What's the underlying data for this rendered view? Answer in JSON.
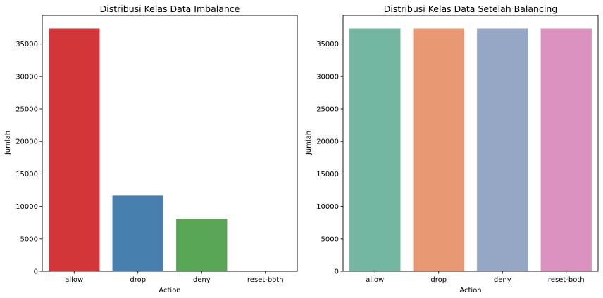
{
  "chart_data": [
    {
      "type": "bar",
      "title": "Distribusi Kelas Data Imbalance",
      "xlabel": "Action",
      "ylabel": "Jumlah",
      "categories": [
        "allow",
        "drop",
        "deny",
        "reset-both"
      ],
      "values": [
        37400,
        11650,
        8100,
        50
      ],
      "colors": [
        "#d13537",
        "#487eae",
        "#5ba556",
        "#8f5fa6"
      ],
      "ylim": [
        0,
        39400
      ],
      "yticks": [
        0,
        5000,
        10000,
        15000,
        20000,
        25000,
        30000,
        35000
      ],
      "grid": false
    },
    {
      "type": "bar",
      "title": "Distribusi Kelas Data Setelah Balancing",
      "xlabel": "Action",
      "ylabel": "Jumlah",
      "categories": [
        "allow",
        "drop",
        "deny",
        "reset-both"
      ],
      "values": [
        37400,
        37400,
        37400,
        37400
      ],
      "colors": [
        "#74b6a2",
        "#e99876",
        "#96a6c5",
        "#dc92c0"
      ],
      "ylim": [
        0,
        39400
      ],
      "yticks": [
        0,
        5000,
        10000,
        15000,
        20000,
        25000,
        30000,
        35000
      ],
      "grid": false
    }
  ]
}
